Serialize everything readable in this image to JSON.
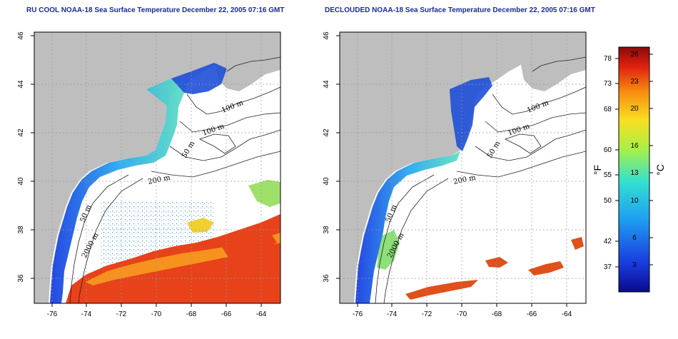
{
  "titles": {
    "left": "RU COOL NOAA-18 Sea Surface Temperature December 22, 2005 07:16 GMT",
    "right": "DECLOUDED NOAA-18 Sea Surface Temperature December 22, 2005 07:16 GMT"
  },
  "axes": {
    "x_ticks": [
      "-76",
      "-74",
      "-72",
      "-70",
      "-68",
      "-66",
      "-64"
    ],
    "y_ticks": [
      "36",
      "38",
      "40",
      "42",
      "44",
      "46"
    ]
  },
  "contour_labels": {
    "left": [
      "100 m",
      "100 m",
      "50 m",
      "200 m",
      "50 m",
      "2000 m"
    ],
    "right": [
      "100 m",
      "100 m",
      "50 m",
      "200 m",
      "50 m",
      "2000 m"
    ]
  },
  "colorbar": {
    "fahrenheit_ticks": [
      "78",
      "73",
      "68",
      "60",
      "55",
      "50",
      "42",
      "37"
    ],
    "celsius_ticks": [
      "26",
      "23",
      "20",
      "16",
      "13",
      "10",
      "6",
      "3"
    ],
    "fahrenheit_unit": "°F",
    "celsius_unit": "°C"
  },
  "colors": {
    "land": "#bebebe",
    "title": "#1a2a9c",
    "cold": "#1e4fd8",
    "warm": "#e8421a"
  }
}
